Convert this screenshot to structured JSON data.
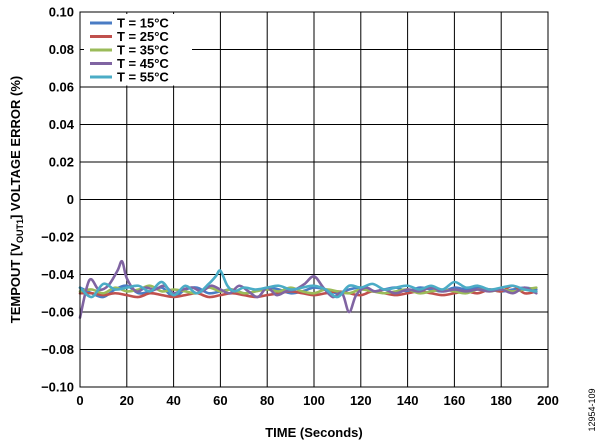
{
  "chart_data": {
    "type": "line",
    "title": "",
    "xlabel": "TIME (Seconds)",
    "ylabel": {
      "prefix": "TEMPOUT [V",
      "sub": "OUT1",
      "suffix": "] VOLTAGE ERROR (%)"
    },
    "xlim": [
      0,
      200
    ],
    "ylim": [
      -0.1,
      0.1
    ],
    "x_ticks": [
      0,
      20,
      40,
      60,
      80,
      100,
      120,
      140,
      160,
      180,
      200
    ],
    "y_ticks": [
      0.1,
      0.08,
      0.06,
      0.04,
      0.02,
      0,
      -0.02,
      -0.04,
      -0.06,
      -0.08,
      -0.1
    ],
    "x_tick_labels": [
      "0",
      "20",
      "40",
      "60",
      "80",
      "100",
      "120",
      "140",
      "160",
      "180",
      "200"
    ],
    "y_tick_labels": [
      "0.10",
      "0.08",
      "0.06",
      "0.04",
      "0.02",
      "0",
      "−0.02",
      "−0.04",
      "−0.06",
      "−0.08",
      "−0.10"
    ],
    "grid": true,
    "legend_position": "top-left",
    "series": [
      {
        "name": "T = 15°C",
        "color": "#4a7cc4",
        "x": [
          0,
          5,
          10,
          15,
          20,
          25,
          30,
          35,
          40,
          45,
          50,
          55,
          60,
          65,
          70,
          75,
          80,
          85,
          90,
          95,
          100,
          105,
          110,
          115,
          120,
          125,
          130,
          135,
          140,
          145,
          150,
          155,
          160,
          165,
          170,
          175,
          180,
          185,
          190,
          195
        ],
        "y": [
          -0.047,
          -0.05,
          -0.052,
          -0.048,
          -0.046,
          -0.05,
          -0.049,
          -0.047,
          -0.052,
          -0.048,
          -0.047,
          -0.05,
          -0.049,
          -0.048,
          -0.05,
          -0.049,
          -0.047,
          -0.048,
          -0.05,
          -0.049,
          -0.047,
          -0.048,
          -0.05,
          -0.048,
          -0.047,
          -0.049,
          -0.048,
          -0.047,
          -0.049,
          -0.047,
          -0.048,
          -0.049,
          -0.047,
          -0.048,
          -0.047,
          -0.048,
          -0.049,
          -0.048,
          -0.047,
          -0.048
        ]
      },
      {
        "name": "T = 25°C",
        "color": "#c0504d",
        "x": [
          0,
          5,
          10,
          15,
          20,
          25,
          30,
          35,
          40,
          45,
          50,
          55,
          60,
          65,
          70,
          75,
          80,
          85,
          90,
          95,
          100,
          105,
          110,
          115,
          120,
          125,
          130,
          135,
          140,
          145,
          150,
          155,
          160,
          165,
          170,
          175,
          180,
          185,
          190,
          195
        ],
        "y": [
          -0.05,
          -0.05,
          -0.051,
          -0.05,
          -0.051,
          -0.052,
          -0.05,
          -0.051,
          -0.052,
          -0.051,
          -0.05,
          -0.052,
          -0.051,
          -0.05,
          -0.051,
          -0.052,
          -0.051,
          -0.05,
          -0.049,
          -0.05,
          -0.051,
          -0.05,
          -0.049,
          -0.05,
          -0.051,
          -0.049,
          -0.05,
          -0.051,
          -0.05,
          -0.049,
          -0.05,
          -0.051,
          -0.05,
          -0.049,
          -0.05,
          -0.048,
          -0.049,
          -0.046,
          -0.05,
          -0.049
        ]
      },
      {
        "name": "T = 35°C",
        "color": "#9bbb59",
        "x": [
          0,
          5,
          10,
          15,
          20,
          25,
          30,
          35,
          40,
          45,
          50,
          55,
          60,
          65,
          70,
          75,
          80,
          85,
          90,
          95,
          100,
          105,
          110,
          115,
          120,
          125,
          130,
          135,
          140,
          145,
          150,
          155,
          160,
          165,
          170,
          175,
          180,
          185,
          190,
          195
        ],
        "y": [
          -0.049,
          -0.048,
          -0.05,
          -0.047,
          -0.049,
          -0.048,
          -0.046,
          -0.049,
          -0.048,
          -0.049,
          -0.05,
          -0.047,
          -0.049,
          -0.048,
          -0.05,
          -0.049,
          -0.048,
          -0.049,
          -0.047,
          -0.049,
          -0.05,
          -0.048,
          -0.049,
          -0.05,
          -0.048,
          -0.049,
          -0.05,
          -0.049,
          -0.048,
          -0.05,
          -0.049,
          -0.048,
          -0.049,
          -0.05,
          -0.048,
          -0.049,
          -0.048,
          -0.049,
          -0.048,
          -0.047
        ]
      },
      {
        "name": "T = 45°C",
        "color": "#8064a2",
        "x": [
          0,
          4,
          8,
          12,
          16,
          18,
          20,
          24,
          28,
          32,
          36,
          40,
          44,
          48,
          52,
          56,
          60,
          64,
          68,
          72,
          76,
          80,
          84,
          88,
          92,
          96,
          100,
          104,
          108,
          112,
          115,
          118,
          122,
          126,
          130,
          135,
          140,
          145,
          150,
          155,
          160,
          165,
          170,
          175,
          180,
          185,
          190,
          195
        ],
        "y": [
          -0.063,
          -0.043,
          -0.048,
          -0.046,
          -0.038,
          -0.033,
          -0.042,
          -0.049,
          -0.047,
          -0.048,
          -0.046,
          -0.05,
          -0.048,
          -0.047,
          -0.049,
          -0.046,
          -0.048,
          -0.05,
          -0.046,
          -0.049,
          -0.052,
          -0.047,
          -0.051,
          -0.049,
          -0.048,
          -0.045,
          -0.041,
          -0.047,
          -0.052,
          -0.05,
          -0.06,
          -0.051,
          -0.047,
          -0.049,
          -0.048,
          -0.05,
          -0.048,
          -0.049,
          -0.047,
          -0.049,
          -0.048,
          -0.049,
          -0.048,
          -0.049,
          -0.048,
          -0.05,
          -0.047,
          -0.05
        ]
      },
      {
        "name": "T = 55°C",
        "color": "#4bacc6",
        "x": [
          0,
          5,
          10,
          15,
          20,
          25,
          30,
          35,
          40,
          45,
          50,
          55,
          58,
          60,
          63,
          66,
          70,
          75,
          80,
          85,
          90,
          95,
          100,
          105,
          110,
          115,
          120,
          125,
          130,
          135,
          140,
          145,
          150,
          155,
          160,
          165,
          170,
          175,
          180,
          185,
          190,
          195
        ],
        "y": [
          -0.047,
          -0.052,
          -0.045,
          -0.048,
          -0.047,
          -0.046,
          -0.049,
          -0.044,
          -0.051,
          -0.046,
          -0.05,
          -0.045,
          -0.041,
          -0.038,
          -0.046,
          -0.049,
          -0.047,
          -0.048,
          -0.047,
          -0.046,
          -0.048,
          -0.047,
          -0.046,
          -0.048,
          -0.052,
          -0.046,
          -0.047,
          -0.045,
          -0.048,
          -0.047,
          -0.046,
          -0.048,
          -0.046,
          -0.048,
          -0.044,
          -0.047,
          -0.046,
          -0.048,
          -0.047,
          -0.046,
          -0.048,
          -0.049
        ]
      }
    ]
  },
  "figure_id": "12954-109"
}
